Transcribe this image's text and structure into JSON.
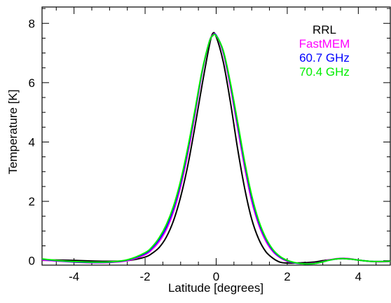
{
  "chart_data": {
    "type": "line",
    "title": "",
    "xlabel": "Latitude [degrees]",
    "ylabel": "Temperature [K]",
    "xlim": [
      -4.9,
      4.9
    ],
    "ylim": [
      -0.15,
      8.55
    ],
    "x_ticks": [
      -4,
      -2,
      0,
      2,
      4
    ],
    "x_tick_labels": [
      "-4",
      "-2",
      "0",
      "2",
      "4"
    ],
    "x_minor_step": 0.5,
    "y_ticks": [
      0,
      2,
      4,
      6,
      8
    ],
    "y_tick_labels": [
      "0",
      "2",
      "4",
      "6",
      "8"
    ],
    "y_minor_step": 0.5,
    "grid": false,
    "legend_position": "top-right",
    "series": [
      {
        "name": "RRL",
        "color": "#000000",
        "x": [
          -4.9,
          -4.5,
          -4.0,
          -3.5,
          -3.0,
          -2.5,
          -2.0,
          -1.8,
          -1.6,
          -1.4,
          -1.2,
          -1.0,
          -0.8,
          -0.6,
          -0.4,
          -0.2,
          -0.1,
          0.0,
          0.2,
          0.4,
          0.6,
          0.8,
          1.0,
          1.2,
          1.4,
          1.6,
          1.8,
          2.0,
          2.2,
          2.4,
          2.6,
          2.8,
          3.0,
          3.2,
          3.4,
          3.6,
          3.8,
          4.0,
          4.3,
          4.6,
          4.9
        ],
        "y": [
          0.02,
          0.02,
          0.01,
          -0.01,
          -0.02,
          0.0,
          0.12,
          0.25,
          0.45,
          0.8,
          1.35,
          2.15,
          3.2,
          4.5,
          5.9,
          7.2,
          7.65,
          7.55,
          6.7,
          5.35,
          3.8,
          2.45,
          1.4,
          0.72,
          0.3,
          0.08,
          -0.05,
          -0.08,
          -0.08,
          -0.07,
          -0.06,
          -0.04,
          0.0,
          0.03,
          0.06,
          0.07,
          0.05,
          0.02,
          -0.02,
          -0.03,
          -0.02
        ]
      },
      {
        "name": "FastMEM",
        "color": "#ff00ff",
        "x": [
          -4.9,
          -4.5,
          -4.0,
          -3.5,
          -3.0,
          -2.5,
          -2.0,
          -1.8,
          -1.6,
          -1.4,
          -1.2,
          -1.0,
          -0.8,
          -0.6,
          -0.4,
          -0.2,
          -0.1,
          0.0,
          0.2,
          0.4,
          0.6,
          0.8,
          1.0,
          1.2,
          1.4,
          1.6,
          1.8,
          2.0,
          2.2,
          2.4,
          2.6,
          2.8,
          3.0,
          3.2,
          3.4,
          3.6,
          3.8,
          4.0,
          4.3,
          4.6,
          4.9
        ],
        "y": [
          0.02,
          -0.01,
          -0.05,
          -0.07,
          -0.06,
          0.0,
          0.2,
          0.38,
          0.65,
          1.05,
          1.65,
          2.5,
          3.6,
          4.9,
          6.3,
          7.35,
          7.6,
          7.6,
          7.0,
          5.85,
          4.5,
          3.15,
          2.0,
          1.2,
          0.65,
          0.3,
          0.1,
          -0.02,
          -0.07,
          -0.1,
          -0.1,
          -0.08,
          -0.03,
          0.03,
          0.07,
          0.08,
          0.06,
          0.02,
          -0.02,
          -0.04,
          -0.03
        ]
      },
      {
        "name": "60.7 GHz",
        "color": "#0000ff",
        "x": [
          -4.9,
          -4.5,
          -4.0,
          -3.5,
          -3.0,
          -2.5,
          -2.0,
          -1.8,
          -1.6,
          -1.4,
          -1.2,
          -1.0,
          -0.8,
          -0.6,
          -0.4,
          -0.2,
          -0.1,
          0.0,
          0.2,
          0.4,
          0.6,
          0.8,
          1.0,
          1.2,
          1.4,
          1.6,
          1.8,
          2.0,
          2.2,
          2.4,
          2.6,
          2.8,
          3.0,
          3.2,
          3.4,
          3.6,
          3.8,
          4.0,
          4.3,
          4.6,
          4.9
        ],
        "y": [
          0.05,
          0.0,
          -0.04,
          -0.06,
          -0.05,
          0.02,
          0.24,
          0.43,
          0.72,
          1.14,
          1.76,
          2.62,
          3.72,
          5.0,
          6.35,
          7.35,
          7.58,
          7.6,
          7.05,
          5.95,
          4.62,
          3.28,
          2.12,
          1.28,
          0.72,
          0.34,
          0.12,
          0.0,
          -0.07,
          -0.1,
          -0.11,
          -0.09,
          -0.04,
          0.02,
          0.06,
          0.07,
          0.05,
          0.02,
          -0.02,
          -0.03,
          -0.02
        ]
      },
      {
        "name": "70.4 GHz",
        "color": "#00ee00",
        "x": [
          -4.9,
          -4.5,
          -4.0,
          -3.5,
          -3.0,
          -2.5,
          -2.0,
          -1.8,
          -1.6,
          -1.4,
          -1.2,
          -1.0,
          -0.8,
          -0.6,
          -0.4,
          -0.2,
          -0.1,
          0.0,
          0.2,
          0.4,
          0.6,
          0.8,
          1.0,
          1.2,
          1.4,
          1.6,
          1.8,
          2.0,
          2.2,
          2.4,
          2.6,
          2.8,
          3.0,
          3.2,
          3.4,
          3.6,
          3.8,
          4.0,
          4.3,
          4.6,
          4.9
        ],
        "y": [
          0.06,
          0.01,
          -0.03,
          -0.05,
          -0.04,
          0.03,
          0.27,
          0.47,
          0.78,
          1.22,
          1.84,
          2.7,
          3.8,
          5.06,
          6.38,
          7.35,
          7.58,
          7.58,
          7.08,
          6.0,
          4.7,
          3.35,
          2.2,
          1.34,
          0.76,
          0.37,
          0.14,
          0.01,
          -0.06,
          -0.1,
          -0.11,
          -0.09,
          -0.04,
          0.02,
          0.06,
          0.07,
          0.05,
          0.02,
          -0.02,
          -0.03,
          -0.02
        ]
      }
    ]
  }
}
